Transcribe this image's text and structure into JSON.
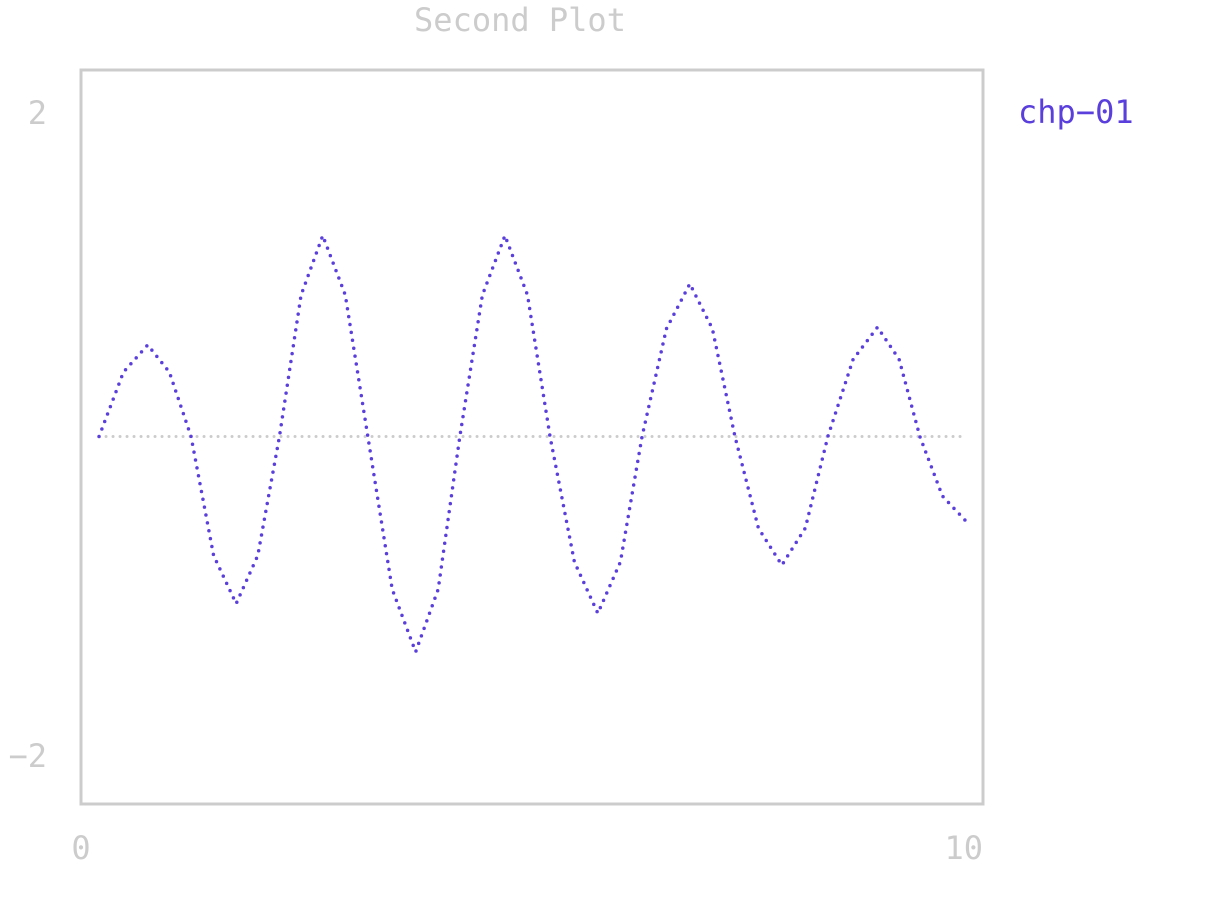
{
  "chart_data": {
    "type": "line",
    "title": "Second Plot",
    "x": [
      0.2,
      0.47,
      0.74,
      0.98,
      1.22,
      1.47,
      1.72,
      1.96,
      2.2,
      2.44,
      2.68,
      2.93,
      3.18,
      3.45,
      3.71,
      3.96,
      4.2,
      4.45,
      4.7,
      4.95,
      5.2,
      5.47,
      5.73,
      5.98,
      6.22,
      6.49,
      6.75,
      7.0,
      7.25,
      7.51,
      7.77,
      8.03,
      8.28,
      8.56,
      8.83,
      9.07,
      9.3,
      9.55,
      9.8
    ],
    "series": [
      {
        "name": "chp−01",
        "color": "#5a3fdc",
        "values": [
          0,
          0.4,
          0.57,
          0.4,
          0,
          -0.74,
          -1.04,
          -0.74,
          0,
          0.88,
          1.25,
          0.88,
          0,
          -0.95,
          -1.34,
          -0.95,
          0,
          0.88,
          1.25,
          0.88,
          0,
          -0.78,
          -1.1,
          -0.78,
          0,
          0.67,
          0.95,
          0.67,
          0,
          -0.57,
          -0.8,
          -0.57,
          0,
          0.48,
          0.68,
          0.48,
          0,
          -0.37,
          -0.52
        ]
      }
    ],
    "xlim": [
      0,
      10
    ],
    "xticks": [
      0,
      10
    ],
    "ylim": [
      -2,
      2
    ],
    "yticks": [
      {
        "value": -2,
        "label": "−2"
      },
      2
    ],
    "legend": "right"
  }
}
